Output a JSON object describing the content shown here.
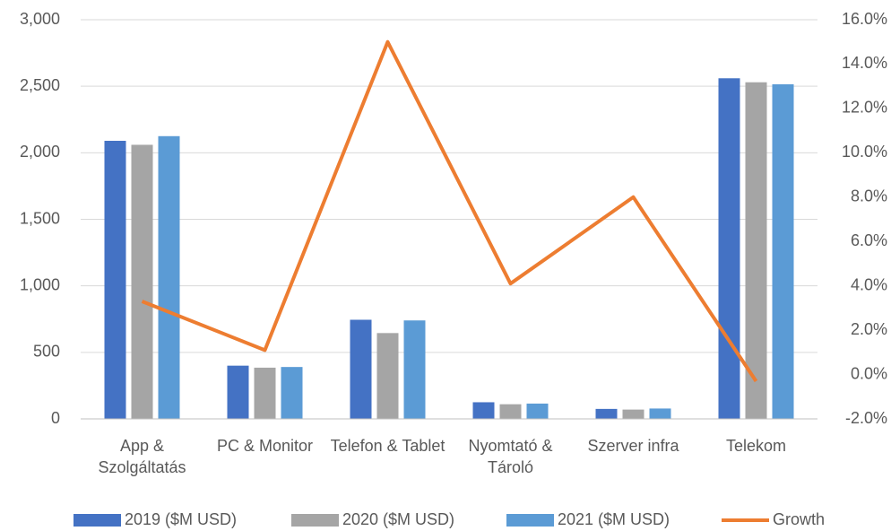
{
  "chart_data": {
    "type": "bar",
    "categories": [
      "App & Szolgáltatás",
      "PC & Monitor",
      "Telefon & Tablet",
      "Nyomtató & Tároló",
      "Szerver infra",
      "Telekom"
    ],
    "series": [
      {
        "name": "2019 ($M USD)",
        "color": "#4472c4",
        "values": [
          2090,
          400,
          745,
          125,
          75,
          2560
        ]
      },
      {
        "name": "2020 ($M USD)",
        "color": "#a5a5a5",
        "values": [
          2060,
          385,
          645,
          110,
          70,
          2530
        ]
      },
      {
        "name": "2021 ($M USD)",
        "color": "#5b9bd5",
        "values": [
          2125,
          390,
          740,
          115,
          78,
          2515
        ]
      },
      {
        "name": "Growth",
        "color": "#ed7d31",
        "type": "line",
        "axis": "y2",
        "values": [
          3.3,
          1.1,
          15.0,
          4.1,
          8.0,
          -0.3
        ]
      }
    ],
    "ylim": [
      0,
      3000
    ],
    "yticks": [
      0,
      500,
      {
        "value": 1000,
        "label": "1,000"
      },
      {
        "value": 1500,
        "label": "1,500"
      },
      {
        "value": 2000,
        "label": "2,000"
      },
      {
        "value": 2500,
        "label": "2,500"
      },
      {
        "value": 3000,
        "label": "3,000"
      }
    ],
    "y2lim": [
      -2,
      16
    ],
    "y2ticks": [
      {
        "value": -2,
        "label": "-2.0%"
      },
      {
        "value": 0,
        "label": "0.0%"
      },
      {
        "value": 2,
        "label": "2.0%"
      },
      {
        "value": 4,
        "label": "4.0%"
      },
      {
        "value": 6,
        "label": "6.0%"
      },
      {
        "value": 8,
        "label": "8.0%"
      },
      {
        "value": 10,
        "label": "10.0%"
      },
      {
        "value": 12,
        "label": "12.0%"
      },
      {
        "value": 14,
        "label": "14.0%"
      },
      {
        "value": 16,
        "label": "16.0%"
      }
    ],
    "grid": true,
    "legend": "bottom"
  }
}
